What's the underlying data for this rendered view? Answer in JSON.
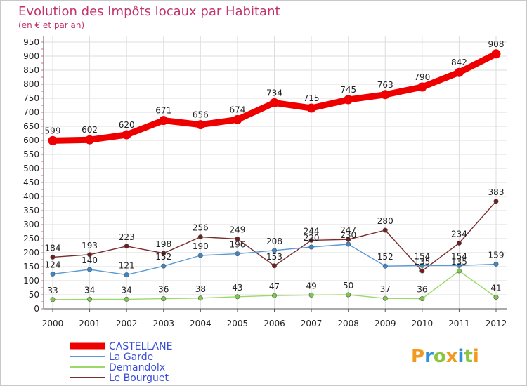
{
  "chart_data": {
    "type": "line",
    "title": "Evolution des Impôts locaux par Habitant",
    "subtitle": "(en € et par an)",
    "categories": [
      "2000",
      "2001",
      "2002",
      "2003",
      "2004",
      "2005",
      "2006",
      "2007",
      "2008",
      "2009",
      "2010",
      "2011",
      "2012"
    ],
    "y_ticks": [
      "0",
      "50",
      "100",
      "150",
      "200",
      "250",
      "300",
      "350",
      "400",
      "450",
      "500",
      "550",
      "600",
      "650",
      "700",
      "750",
      "800",
      "850",
      "900",
      "950"
    ],
    "ylim": [
      0,
      950
    ],
    "grid": true,
    "legend_position": "bottom-left",
    "series": [
      {
        "name": "CASTELLANE",
        "color": "#ee0000",
        "marker_color": "#ee0000",
        "emphasis": "thick",
        "values": [
          599,
          602,
          620,
          671,
          656,
          674,
          734,
          715,
          745,
          763,
          790,
          842,
          908
        ],
        "labels": [
          "599",
          "602",
          "620",
          "671",
          "656",
          "674",
          "734",
          "715",
          "745",
          "763",
          "790",
          "842",
          "908"
        ]
      },
      {
        "name": "La Garde",
        "color": "#5a9bd5",
        "marker_color": "#3d87c9",
        "emphasis": "thin",
        "values": [
          124,
          140,
          121,
          152,
          190,
          196,
          208,
          220,
          230,
          152,
          154,
          154,
          159
        ],
        "labels": [
          "124",
          "140",
          "121",
          "152",
          "190",
          "196",
          "208",
          "220",
          "230",
          "152",
          "154",
          "154",
          "159"
        ]
      },
      {
        "name": "Demandolx",
        "color": "#9bd86a",
        "marker_color": "#7cc94a",
        "emphasis": "thin",
        "values": [
          33,
          34,
          34,
          36,
          38,
          43,
          47,
          49,
          50,
          37,
          36,
          135,
          41
        ],
        "labels": [
          "33",
          "34",
          "34",
          "36",
          "38",
          "43",
          "47",
          "49",
          "50",
          "37",
          "36",
          "135",
          "41"
        ]
      },
      {
        "name": "Le Bourguet",
        "color": "#7a2b2b",
        "marker_color": "#6e1f1f",
        "emphasis": "thin",
        "values": [
          184,
          193,
          223,
          198,
          256,
          249,
          153,
          244,
          247,
          280,
          135,
          234,
          383
        ],
        "labels": [
          "184",
          "193",
          "223",
          "198",
          "256",
          "249",
          "153",
          "244",
          "247",
          "280",
          "135",
          "234",
          "383"
        ]
      }
    ]
  },
  "logo": {
    "letters": [
      "P",
      "r",
      "o",
      "x",
      "i",
      "t",
      "i"
    ],
    "colors": [
      "#f39a1e",
      "#2f8fd8",
      "#8bc53f",
      "#f39a1e",
      "#2f8fd8",
      "#8bc53f",
      "#f39a1e"
    ]
  }
}
